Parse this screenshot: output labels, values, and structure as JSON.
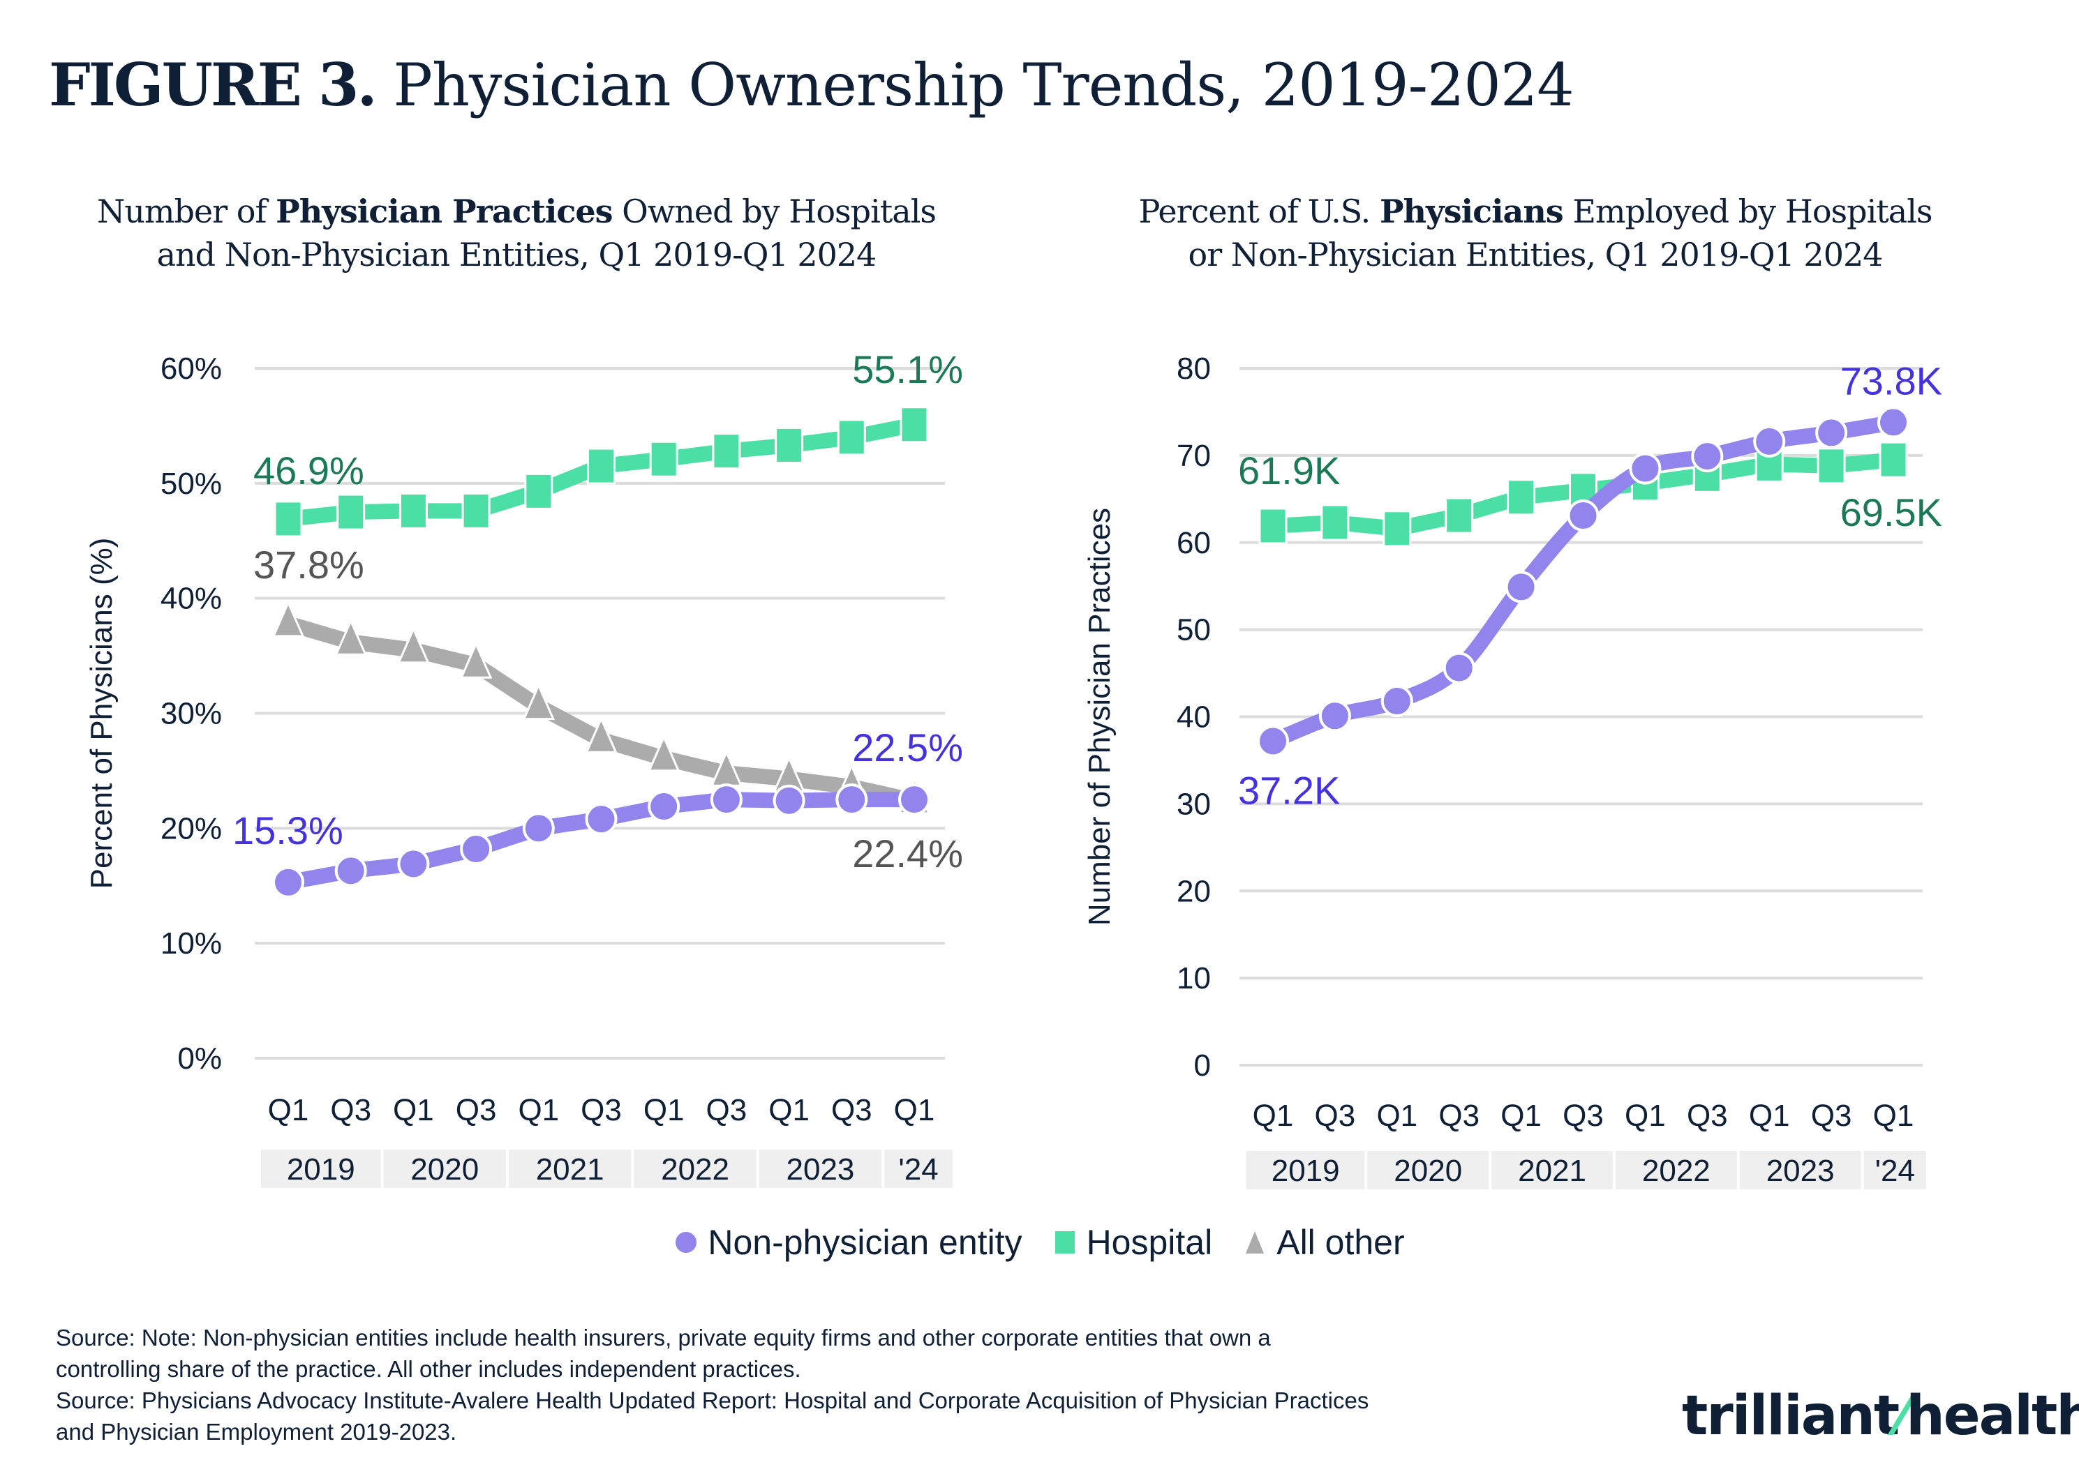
{
  "figure": {
    "label": "FIGURE 3.",
    "title": "Physician Ownership Trends, 2019-2024"
  },
  "colors": {
    "non_physician": "#9184ec",
    "non_physician_label": "#4432e0",
    "hospital": "#4cdfa5",
    "hospital_label": "#1b7a55",
    "all_other": "#ababab",
    "all_other_label": "#555555",
    "grid": "#dcdcdc",
    "year_band": "#efefef"
  },
  "legend": [
    {
      "key": "non_physician",
      "label": "Non-physician entity",
      "marker": "circle"
    },
    {
      "key": "hospital",
      "label": "Hospital",
      "marker": "square"
    },
    {
      "key": "all_other",
      "label": "All other",
      "marker": "triangle"
    }
  ],
  "notes": [
    "Source: Note: Non-physician entities include health insurers, private equity firms and other corporate entities that own a",
    "controlling share of the practice. All other includes independent practices.",
    "Source: Physicians Advocacy Institute-Avalere Health Updated Report: Hospital and Corporate Acquisition of Physician Practices",
    "and Physician Employment 2019-2023."
  ],
  "logo": {
    "text_left": "trilliant",
    "text_right": "health",
    "mark": "®"
  },
  "chart_data": [
    {
      "type": "line",
      "title_parts": [
        "Number of ",
        "Physician Practices",
        " Owned by Hospitals",
        "and Non-Physician Entities, Q1 2019-Q1 2024"
      ],
      "title": "Number of Physician Practices Owned by Hospitals and Non-Physician Entities, Q1 2019-Q1 2024",
      "xlabel": "",
      "ylabel": "Percent of Physicians (%)",
      "ylim": [
        0,
        60
      ],
      "yticks": [
        0,
        10,
        20,
        30,
        40,
        50,
        60
      ],
      "ytick_labels": [
        "0%",
        "10%",
        "20%",
        "30%",
        "40%",
        "50%",
        "60%"
      ],
      "grid": true,
      "categories": [
        "Q1",
        "Q3",
        "Q1",
        "Q3",
        "Q1",
        "Q3",
        "Q1",
        "Q3",
        "Q1",
        "Q3",
        "Q1"
      ],
      "year_groups": [
        {
          "label": "2019",
          "span": 2
        },
        {
          "label": "2020",
          "span": 2
        },
        {
          "label": "2021",
          "span": 2
        },
        {
          "label": "2022",
          "span": 2
        },
        {
          "label": "2023",
          "span": 2
        },
        {
          "label": "'24",
          "span": 1
        }
      ],
      "series": [
        {
          "key": "hospital",
          "name": "Hospital",
          "values": [
            46.9,
            47.5,
            47.6,
            47.6,
            49.3,
            51.5,
            52.1,
            52.8,
            53.3,
            54.0,
            55.1
          ],
          "annotations": [
            {
              "index": 0,
              "text": "46.9%",
              "pos": "above-left"
            },
            {
              "index": 10,
              "text": "55.1%",
              "pos": "above"
            }
          ]
        },
        {
          "key": "all_other",
          "name": "All other",
          "values": [
            37.8,
            36.2,
            35.5,
            34.2,
            30.6,
            27.7,
            26.1,
            24.8,
            24.3,
            23.6,
            22.4
          ],
          "annotations": [
            {
              "index": 0,
              "text": "37.8%",
              "pos": "above"
            },
            {
              "index": 10,
              "text": "22.4%",
              "pos": "below"
            }
          ]
        },
        {
          "key": "non_physician",
          "name": "Non-physician entity",
          "values": [
            15.3,
            16.3,
            16.9,
            18.2,
            20.0,
            20.8,
            21.9,
            22.5,
            22.4,
            22.5,
            22.5
          ],
          "annotations": [
            {
              "index": 0,
              "text": "15.3%",
              "pos": "above"
            },
            {
              "index": 10,
              "text": "22.5%",
              "pos": "above"
            }
          ]
        }
      ]
    },
    {
      "type": "line",
      "title_parts": [
        "Percent of U.S. ",
        "Physicians",
        " Employed by Hospitals",
        "or Non-Physician Entities, Q1 2019-Q1 2024"
      ],
      "title": "Percent of U.S. Physicians Employed by Hospitals or Non-Physician Entities, Q1 2019-Q1 2024",
      "xlabel": "",
      "ylabel": "Number of Physician Practices",
      "ylim": [
        0,
        80
      ],
      "yticks": [
        0,
        10,
        20,
        30,
        40,
        50,
        60,
        70,
        80
      ],
      "ytick_labels": [
        "0",
        "10",
        "20",
        "30",
        "40",
        "50",
        "60",
        "70",
        "80"
      ],
      "grid": true,
      "categories": [
        "Q1",
        "Q3",
        "Q1",
        "Q3",
        "Q1",
        "Q3",
        "Q1",
        "Q3",
        "Q1",
        "Q3",
        "Q1"
      ],
      "year_groups": [
        {
          "label": "2019",
          "span": 2
        },
        {
          "label": "2020",
          "span": 2
        },
        {
          "label": "2021",
          "span": 2
        },
        {
          "label": "2022",
          "span": 2
        },
        {
          "label": "2023",
          "span": 2
        },
        {
          "label": "'24",
          "span": 1
        }
      ],
      "series": [
        {
          "key": "hospital",
          "name": "Hospital",
          "values": [
            61.9,
            62.3,
            61.6,
            63.1,
            65.2,
            66.0,
            66.8,
            67.8,
            69.0,
            68.8,
            69.5
          ],
          "annotations": [
            {
              "index": 0,
              "text": "61.9K",
              "pos": "above"
            },
            {
              "index": 10,
              "text": "69.5K",
              "pos": "below"
            }
          ]
        },
        {
          "key": "non_physician",
          "name": "Non-physician entity",
          "values": [
            37.2,
            40.1,
            41.8,
            45.6,
            54.9,
            63.1,
            68.5,
            69.9,
            71.6,
            72.6,
            73.8
          ],
          "smooth": true,
          "annotations": [
            {
              "index": 0,
              "text": "37.2K",
              "pos": "below"
            },
            {
              "index": 10,
              "text": "73.8K",
              "pos": "above"
            }
          ]
        }
      ]
    }
  ]
}
